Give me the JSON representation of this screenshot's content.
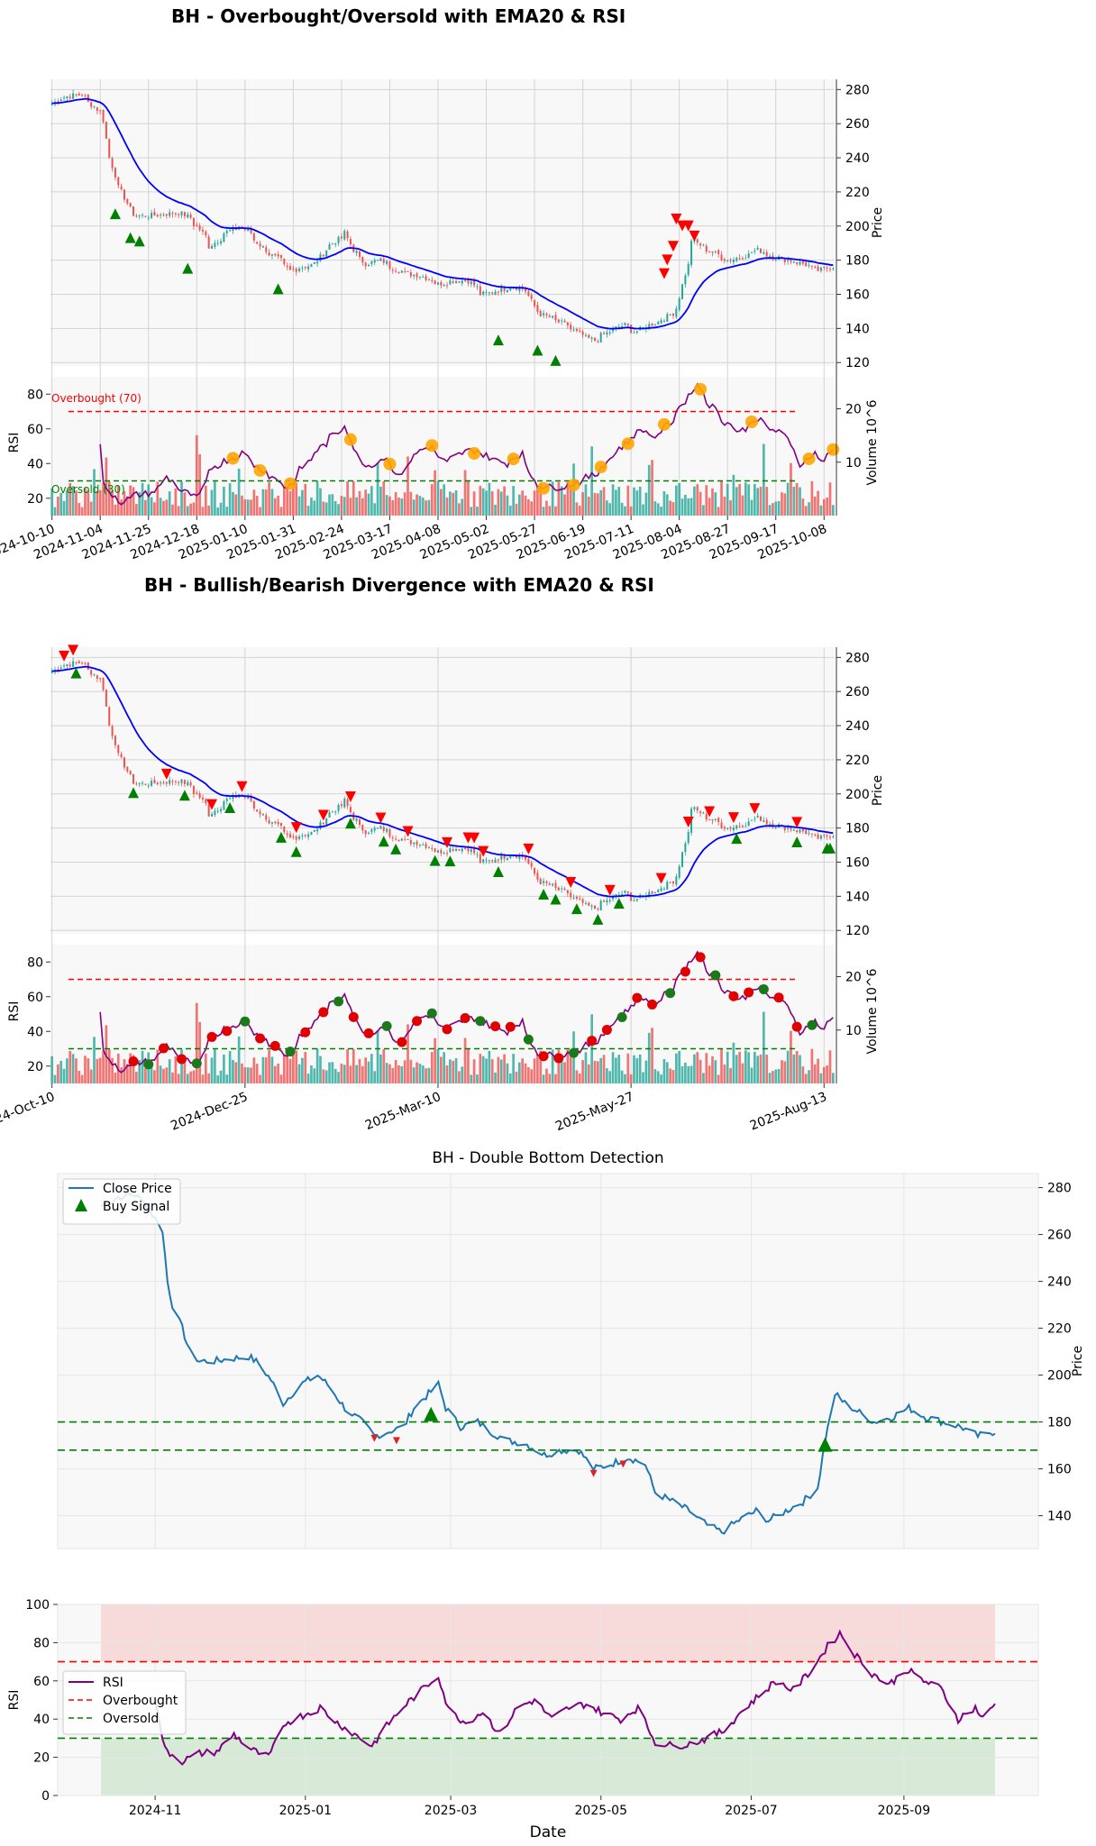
{
  "colors": {
    "candle_up": "#26a69a",
    "candle_down": "#ef5350",
    "ema": "#0000ff",
    "rsi": "#800080",
    "overbought": "#ff0000",
    "oversold": "#008000",
    "marker_orange": "#ffa500",
    "close_price": "#1f77b4"
  },
  "chart_data": [
    {
      "id": "panel1",
      "type": "candlestick",
      "title": "BH - Overbought/Oversold with EMA20 & RSI",
      "ylabel_price": "Price",
      "ylabel_rsi": "RSI",
      "ylabel_volume": "Volume  10^6",
      "price_ylim": [
        118,
        286
      ],
      "price_ticks": [
        120,
        140,
        160,
        180,
        200,
        220,
        240,
        260,
        280
      ],
      "rsi_ticks": [
        20,
        40,
        60,
        80
      ],
      "volume_ticks": [
        "10",
        "20"
      ],
      "x_tick_labels": [
        "2024-10-10",
        "2024-11-04",
        "2024-11-25",
        "2024-12-18",
        "2025-01-10",
        "2025-01-31",
        "2025-02-24",
        "2025-03-17",
        "2025-04-08",
        "2025-05-02",
        "2025-05-27",
        "2025-06-19",
        "2025-07-11",
        "2025-08-04",
        "2025-08-27",
        "2025-09-17",
        "2025-10-08"
      ],
      "overbought_label": "Overbought (70)",
      "oversold_label": "Oversold (30)",
      "overbought_level": 70,
      "oversold_level": 30,
      "buy_signals_price": [
        212,
        198,
        196,
        180,
        168,
        138,
        132,
        126
      ],
      "sell_signals_price": [
        170,
        178,
        186,
        202,
        198,
        198,
        192
      ],
      "grid": true
    },
    {
      "id": "panel2",
      "type": "candlestick",
      "title": "BH - Bullish/Bearish Divergence with EMA20 & RSI",
      "ylabel_price": "Price",
      "ylabel_rsi": "RSI",
      "ylabel_volume": "Volume  10^6",
      "price_ylim": [
        118,
        286
      ],
      "price_ticks": [
        120,
        140,
        160,
        180,
        200,
        220,
        240,
        260,
        280
      ],
      "rsi_ticks": [
        20,
        40,
        60,
        80
      ],
      "volume_ticks": [
        "10",
        "20"
      ],
      "x_tick_labels": [
        "2024-Oct-10",
        "2024-Dec-25",
        "2025-Mar-10",
        "2025-May-27",
        "2025-Aug-13"
      ],
      "overbought_level": 70,
      "oversold_level": 30,
      "grid": true
    },
    {
      "id": "panel3",
      "type": "line",
      "title": "BH - Double Bottom Detection",
      "ylabel": "Price",
      "ylim": [
        126,
        286
      ],
      "yticks": [
        140,
        160,
        180,
        200,
        220,
        240,
        260,
        280
      ],
      "support_levels": [
        180,
        168
      ],
      "legend": [
        {
          "name": "Close Price",
          "kind": "line"
        },
        {
          "name": "Buy Signal",
          "kind": "triangle"
        }
      ],
      "legend_position": "upper-left",
      "buy_signals": [
        {
          "x": "2025-02-21",
          "y": 183
        },
        {
          "x": "2025-07-31",
          "y": 170
        }
      ],
      "bottoms": [
        {
          "x": "2025-01-29",
          "y": 173
        },
        {
          "x": "2025-02-07",
          "y": 172
        },
        {
          "x": "2025-04-28",
          "y": 158
        },
        {
          "x": "2025-05-10",
          "y": 162
        }
      ],
      "grid": true
    },
    {
      "id": "panel4",
      "type": "line",
      "ylabel": "RSI",
      "xlabel": "Date",
      "ylim": [
        0,
        100
      ],
      "yticks": [
        0,
        20,
        40,
        60,
        80,
        100
      ],
      "xtick_labels": [
        "2024-11",
        "2025-01",
        "2025-03",
        "2025-05",
        "2025-07",
        "2025-09"
      ],
      "overbought": 70,
      "oversold": 30,
      "legend": [
        {
          "name": "RSI",
          "kind": "line"
        },
        {
          "name": "Overbought",
          "kind": "dashed-red"
        },
        {
          "name": "Oversold",
          "kind": "dashed-green"
        }
      ],
      "legend_position": "center-left",
      "grid": true
    }
  ],
  "series": {
    "start_date": "2024-10-10",
    "end_date": "2025-10-08",
    "close_anchors": [
      [
        "2024-10-10",
        272
      ],
      [
        "2024-10-17",
        276
      ],
      [
        "2024-10-24",
        277
      ],
      [
        "2024-10-30",
        270
      ],
      [
        "2024-11-04",
        262
      ],
      [
        "2024-11-06",
        240
      ],
      [
        "2024-11-08",
        230
      ],
      [
        "2024-11-12",
        220
      ],
      [
        "2024-11-15",
        210
      ],
      [
        "2024-11-19",
        206
      ],
      [
        "2024-11-25",
        206
      ],
      [
        "2024-12-02",
        207
      ],
      [
        "2024-12-09",
        208
      ],
      [
        "2024-12-13",
        205
      ],
      [
        "2024-12-18",
        198
      ],
      [
        "2024-12-23",
        188
      ],
      [
        "2024-12-30",
        196
      ],
      [
        "2025-01-06",
        200
      ],
      [
        "2025-01-10",
        196
      ],
      [
        "2025-01-17",
        186
      ],
      [
        "2025-01-24",
        180
      ],
      [
        "2025-01-29",
        174
      ],
      [
        "2025-02-04",
        176
      ],
      [
        "2025-02-10",
        178
      ],
      [
        "2025-02-14",
        186
      ],
      [
        "2025-02-20",
        192
      ],
      [
        "2025-02-24",
        196
      ],
      [
        "2025-02-27",
        186
      ],
      [
        "2025-03-05",
        178
      ],
      [
        "2025-03-12",
        180
      ],
      [
        "2025-03-17",
        176
      ],
      [
        "2025-03-24",
        172
      ],
      [
        "2025-03-31",
        171
      ],
      [
        "2025-04-08",
        166
      ],
      [
        "2025-04-15",
        168
      ],
      [
        "2025-04-22",
        168
      ],
      [
        "2025-04-28",
        160
      ],
      [
        "2025-05-05",
        162
      ],
      [
        "2025-05-12",
        165
      ],
      [
        "2025-05-19",
        162
      ],
      [
        "2025-05-23",
        150
      ],
      [
        "2025-05-30",
        146
      ],
      [
        "2025-06-06",
        142
      ],
      [
        "2025-06-13",
        136
      ],
      [
        "2025-06-19",
        133
      ],
      [
        "2025-06-26",
        138
      ],
      [
        "2025-07-03",
        142
      ],
      [
        "2025-07-08",
        138
      ],
      [
        "2025-07-15",
        142
      ],
      [
        "2025-07-22",
        146
      ],
      [
        "2025-07-28",
        152
      ],
      [
        "2025-07-31",
        172
      ],
      [
        "2025-08-04",
        192
      ],
      [
        "2025-08-08",
        188
      ],
      [
        "2025-08-14",
        184
      ],
      [
        "2025-08-20",
        180
      ],
      [
        "2025-08-27",
        182
      ],
      [
        "2025-09-03",
        186
      ],
      [
        "2025-09-10",
        182
      ],
      [
        "2025-09-17",
        180
      ],
      [
        "2025-09-24",
        178
      ],
      [
        "2025-10-01",
        174
      ],
      [
        "2025-10-08",
        176
      ]
    ],
    "rsi_anchors": [
      [
        "2024-11-01",
        50
      ],
      [
        "2024-11-05",
        24
      ],
      [
        "2024-11-12",
        18
      ],
      [
        "2024-11-19",
        22
      ],
      [
        "2024-11-26",
        23
      ],
      [
        "2024-12-03",
        32
      ],
      [
        "2024-12-10",
        24
      ],
      [
        "2024-12-17",
        20
      ],
      [
        "2024-12-24",
        38
      ],
      [
        "2024-12-31",
        42
      ],
      [
        "2025-01-07",
        46
      ],
      [
        "2025-01-14",
        38
      ],
      [
        "2025-01-21",
        32
      ],
      [
        "2025-01-28",
        26
      ],
      [
        "2025-02-04",
        38
      ],
      [
        "2025-02-11",
        48
      ],
      [
        "2025-02-18",
        56
      ],
      [
        "2025-02-24",
        63
      ],
      [
        "2025-02-28",
        45
      ],
      [
        "2025-03-07",
        38
      ],
      [
        "2025-03-14",
        44
      ],
      [
        "2025-03-21",
        32
      ],
      [
        "2025-03-28",
        46
      ],
      [
        "2025-04-04",
        50
      ],
      [
        "2025-04-11",
        40
      ],
      [
        "2025-04-18",
        46
      ],
      [
        "2025-04-25",
        48
      ],
      [
        "2025-05-02",
        43
      ],
      [
        "2025-05-09",
        40
      ],
      [
        "2025-05-16",
        46
      ],
      [
        "2025-05-23",
        28
      ],
      [
        "2025-05-30",
        26
      ],
      [
        "2025-06-06",
        27
      ],
      [
        "2025-06-13",
        30
      ],
      [
        "2025-06-20",
        34
      ],
      [
        "2025-06-27",
        44
      ],
      [
        "2025-07-04",
        52
      ],
      [
        "2025-07-11",
        60
      ],
      [
        "2025-07-18",
        55
      ],
      [
        "2025-07-25",
        65
      ],
      [
        "2025-08-01",
        78
      ],
      [
        "2025-08-06",
        85
      ],
      [
        "2025-08-12",
        74
      ],
      [
        "2025-08-19",
        64
      ],
      [
        "2025-08-26",
        58
      ],
      [
        "2025-09-02",
        66
      ],
      [
        "2025-09-09",
        60
      ],
      [
        "2025-09-16",
        56
      ],
      [
        "2025-09-23",
        40
      ],
      [
        "2025-09-30",
        46
      ],
      [
        "2025-10-03",
        40
      ],
      [
        "2025-10-08",
        48
      ]
    ]
  }
}
